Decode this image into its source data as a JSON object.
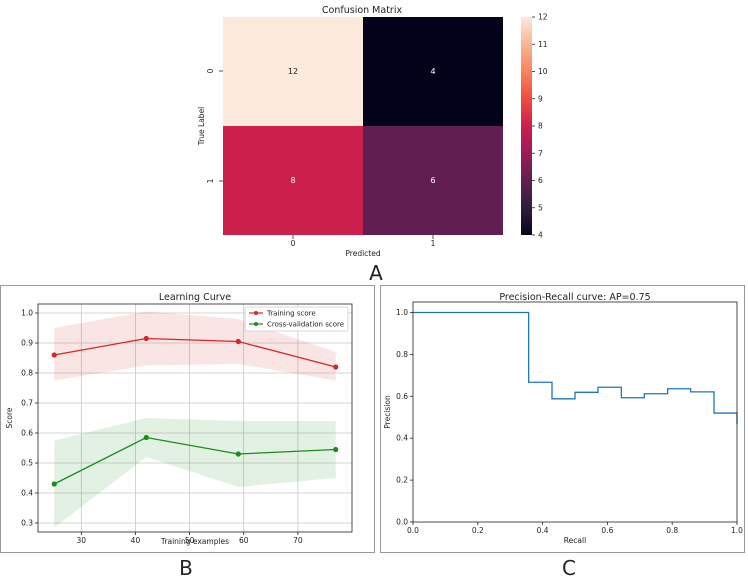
{
  "panel_letters": [
    "A",
    "B",
    "C"
  ],
  "chart_data": [
    {
      "type": "heatmap",
      "title": "Confusion Matrix",
      "xlabel": "Predicted",
      "ylabel": "True Label",
      "x_categories": [
        "0",
        "1"
      ],
      "y_categories": [
        "0",
        "1"
      ],
      "matrix": [
        [
          12,
          4
        ],
        [
          8,
          6
        ]
      ],
      "colorbar": {
        "min": 4,
        "max": 12,
        "ticks": [
          "4",
          "5",
          "6",
          "7",
          "8",
          "9",
          "10",
          "11",
          "12"
        ]
      },
      "colors": {
        "v12": "#fbe9db",
        "v8": "#cc1f4c",
        "v6": "#611f51",
        "v4": "#02031a"
      }
    },
    {
      "type": "line",
      "title": "Learning Curve",
      "xlabel": "Training examples",
      "ylabel": "Score",
      "xlim": [
        22,
        80
      ],
      "ylim": [
        0.27,
        1.03
      ],
      "xticks": [
        "30",
        "40",
        "50",
        "60",
        "70"
      ],
      "yticks": [
        "0.3",
        "0.4",
        "0.5",
        "0.6",
        "0.7",
        "0.8",
        "0.9",
        "1.0"
      ],
      "grid": true,
      "legend_position": "top-right",
      "x": [
        25,
        42,
        59,
        77
      ],
      "series": [
        {
          "name": "Training score",
          "color": "#d62728",
          "values": [
            0.86,
            0.915,
            0.905,
            0.82
          ],
          "band_upper": [
            0.95,
            1.005,
            0.98,
            0.87
          ],
          "band_lower": [
            0.775,
            0.825,
            0.83,
            0.775
          ]
        },
        {
          "name": "Cross-validation score",
          "color": "#1a8c1a",
          "values": [
            0.43,
            0.585,
            0.53,
            0.545
          ],
          "band_upper": [
            0.575,
            0.65,
            0.64,
            0.64
          ],
          "band_lower": [
            0.285,
            0.52,
            0.42,
            0.45
          ]
        }
      ]
    },
    {
      "type": "line",
      "title": "Precision-Recall curve: AP=0.75",
      "xlabel": "Recall",
      "ylabel": "Precision",
      "xlim": [
        0,
        1
      ],
      "ylim": [
        0,
        1.05
      ],
      "xticks": [
        "0.0",
        "0.2",
        "0.4",
        "0.6",
        "0.8",
        "1.0"
      ],
      "yticks": [
        "0.0",
        "0.2",
        "0.4",
        "0.6",
        "0.8",
        "1.0"
      ],
      "color": "#1f77b4",
      "step_points": [
        [
          0,
          1.0
        ],
        [
          0.357,
          1.0
        ],
        [
          0.357,
          0.667
        ],
        [
          0.429,
          0.667
        ],
        [
          0.429,
          0.588
        ],
        [
          0.5,
          0.588
        ],
        [
          0.5,
          0.619
        ],
        [
          0.571,
          0.619
        ],
        [
          0.571,
          0.643
        ],
        [
          0.643,
          0.643
        ],
        [
          0.643,
          0.593
        ],
        [
          0.714,
          0.593
        ],
        [
          0.714,
          0.612
        ],
        [
          0.786,
          0.612
        ],
        [
          0.786,
          0.636
        ],
        [
          0.857,
          0.636
        ],
        [
          0.857,
          0.621
        ],
        [
          0.929,
          0.621
        ],
        [
          0.929,
          0.52
        ],
        [
          1.0,
          0.52
        ],
        [
          1.0,
          0.467
        ]
      ]
    }
  ]
}
